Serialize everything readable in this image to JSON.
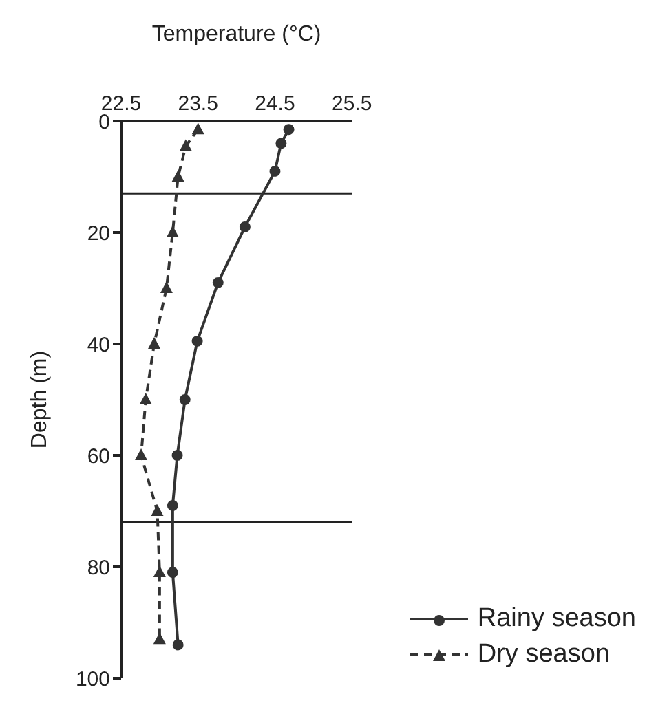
{
  "chart_data": {
    "type": "line",
    "xlabel": "Temperature (°C)",
    "ylabel": "Depth (m)",
    "xlim": [
      22.5,
      25.5
    ],
    "xticks": [
      22.5,
      23.5,
      24.5,
      25.5
    ],
    "ylim": [
      100,
      0
    ],
    "yticks": [
      0,
      20,
      40,
      60,
      80,
      100
    ],
    "grid": false,
    "legend": "bottom right",
    "ref_lines": [
      {
        "axis": "y",
        "value": 13,
        "color": "#222222"
      },
      {
        "axis": "y",
        "value": 72,
        "color": "#222222"
      }
    ],
    "series": [
      {
        "name": "Rainy season",
        "color": "#333333",
        "marker": "circle",
        "line_style": "solid",
        "x": [
          24.68,
          24.58,
          24.5,
          24.11,
          23.76,
          23.49,
          23.33,
          23.23,
          23.17,
          23.17,
          23.24
        ],
        "values": [
          1.5,
          4,
          9,
          19,
          29,
          39.5,
          50,
          60,
          69,
          81,
          94
        ]
      },
      {
        "name": "Dry season",
        "color": "#333333",
        "marker": "triangle",
        "line_style": "dashed",
        "x": [
          23.5,
          23.34,
          23.24,
          23.17,
          23.09,
          22.93,
          22.82,
          22.76,
          22.97,
          23.0,
          23.0
        ],
        "values": [
          1.5,
          4.5,
          10,
          20,
          30,
          40,
          50,
          60,
          70,
          81,
          93
        ]
      }
    ]
  }
}
